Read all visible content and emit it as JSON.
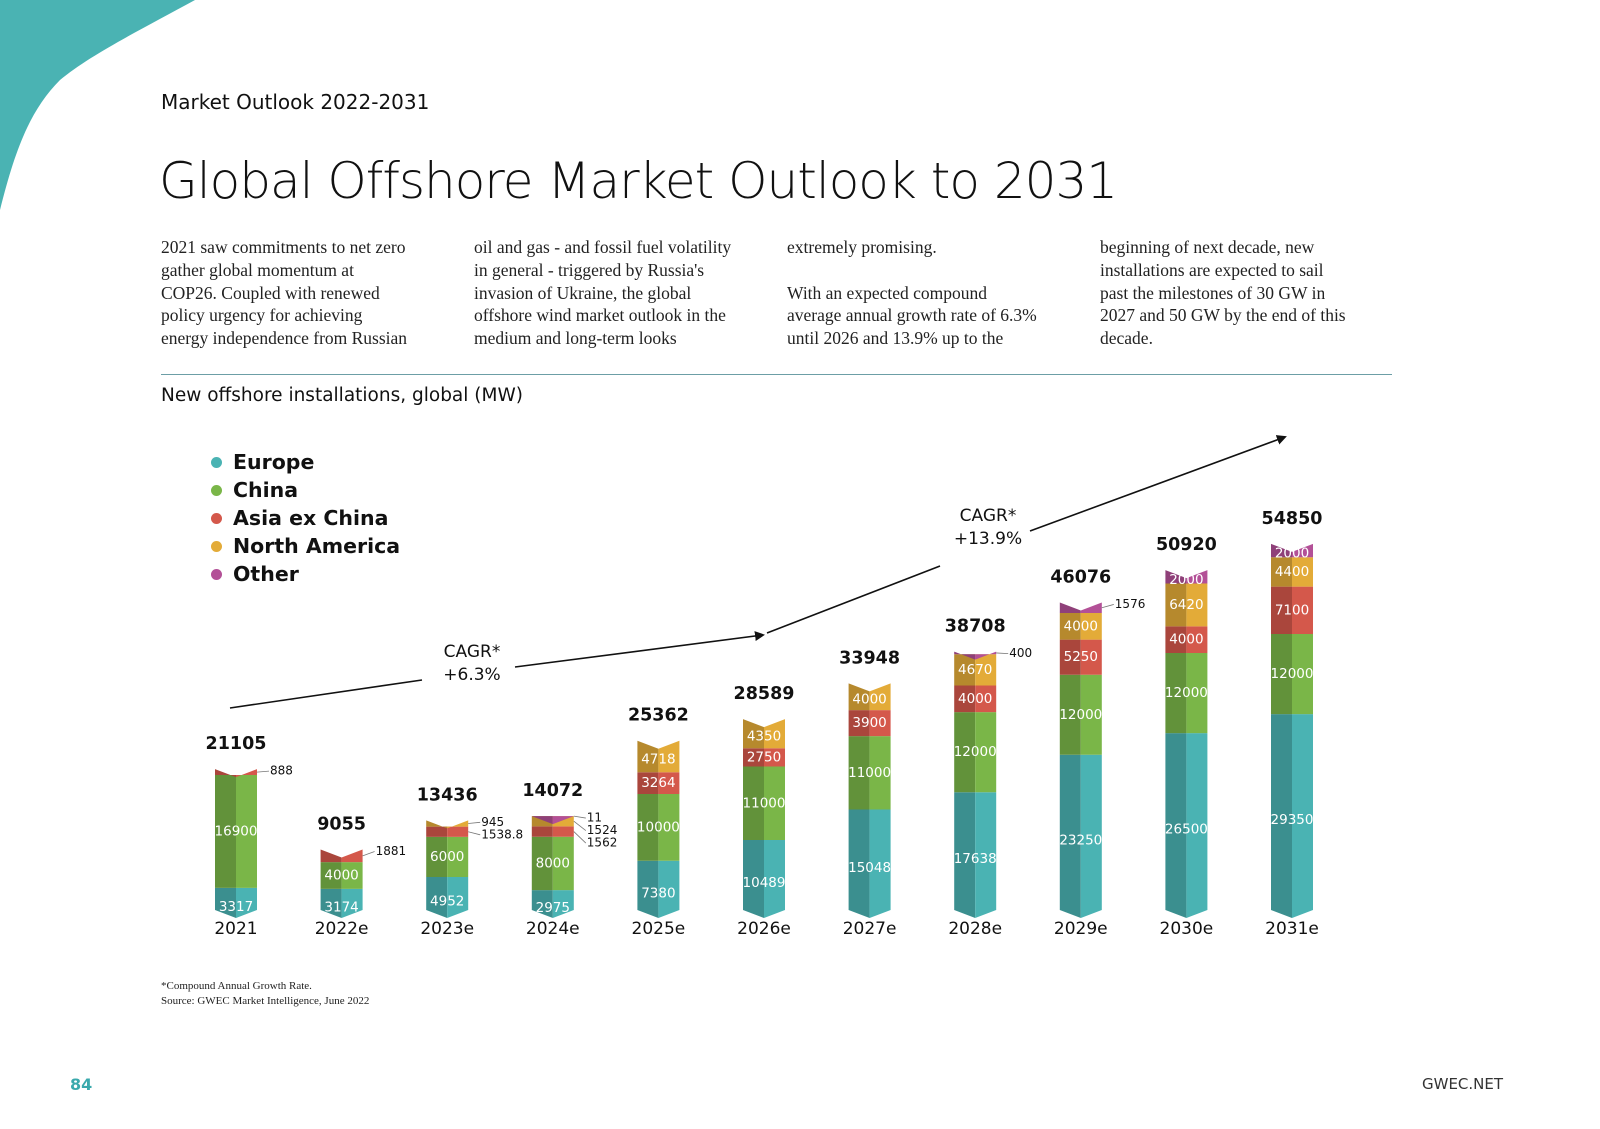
{
  "header": {
    "section": "Market Outlook 2022-2031",
    "title": "Global Offshore Market Outlook to 2031"
  },
  "intro_columns": [
    "2021 saw commitments to net zero\ngather global momentum at\nCOP26. Coupled with renewed\npolicy urgency for achieving\nenergy independence from Russian",
    "oil and gas - and fossil fuel volatility\nin general - triggered by Russia's\ninvasion of Ukraine, the global\noffshore wind market outlook in the\nmedium and long-term looks",
    "extremely promising.\n\nWith an expected compound\naverage annual growth rate of 6.3%\nuntil 2026 and 13.9% up to the",
    "beginning of next decade, new\ninstallations are expected to sail\npast the milestones of 30 GW in\n2027 and 50 GW by the end of this\ndecade."
  ],
  "chart_heading": "New offshore installations, global (MW)",
  "footnotes": [
    "*Compound Annual Growth Rate.",
    "Source: GWEC Market Intelligence, June 2022"
  ],
  "footer": {
    "page_number": "84",
    "site": "GWEC.NET"
  },
  "colors": {
    "accent": "#4ab3b3",
    "Europe": "#4ab3b3",
    "China": "#7ab648",
    "Asia ex China": "#d4584b",
    "North America": "#e3ab38",
    "Other": "#b35097"
  },
  "chart_data": {
    "type": "bar",
    "stacked": true,
    "title": "New offshore installations, global (MW)",
    "categories": [
      "2021",
      "2022e",
      "2023e",
      "2024e",
      "2025e",
      "2026e",
      "2027e",
      "2028e",
      "2029e",
      "2030e",
      "2031e"
    ],
    "series": [
      {
        "name": "Europe",
        "color": "#4ab3b3",
        "values": [
          3317,
          3174,
          4952,
          2975,
          7380,
          10489,
          15048,
          17638,
          23250,
          26500,
          29350
        ]
      },
      {
        "name": "China",
        "color": "#7ab648",
        "values": [
          16900,
          4000,
          6000,
          8000,
          10000,
          11000,
          11000,
          12000,
          12000,
          12000,
          12000
        ]
      },
      {
        "name": "Asia ex China",
        "color": "#d4584b",
        "values": [
          888,
          1881,
          1538.8,
          1562,
          3264,
          2750,
          3900,
          4000,
          5250,
          4000,
          7100
        ]
      },
      {
        "name": "North America",
        "color": "#e3ab38",
        "values": [
          0,
          0,
          945,
          1524,
          4718,
          4350,
          4000,
          4670,
          4000,
          6420,
          4400
        ]
      },
      {
        "name": "Other",
        "color": "#b35097",
        "values": [
          0,
          0,
          0,
          11,
          0,
          0,
          0,
          400,
          1576,
          2000,
          2000
        ]
      }
    ],
    "totals": [
      "21105",
      "9055",
      "13436",
      "14072",
      "25362",
      "28589",
      "33948",
      "38708",
      "46076",
      "50920",
      "54850"
    ],
    "ylim": [
      0,
      60000
    ],
    "grid": false,
    "legend_position": "top-left",
    "annotations": [
      {
        "text": "CAGR*",
        "sub": "+6.3%"
      },
      {
        "text": "CAGR*",
        "sub": "+13.9%"
      }
    ]
  }
}
